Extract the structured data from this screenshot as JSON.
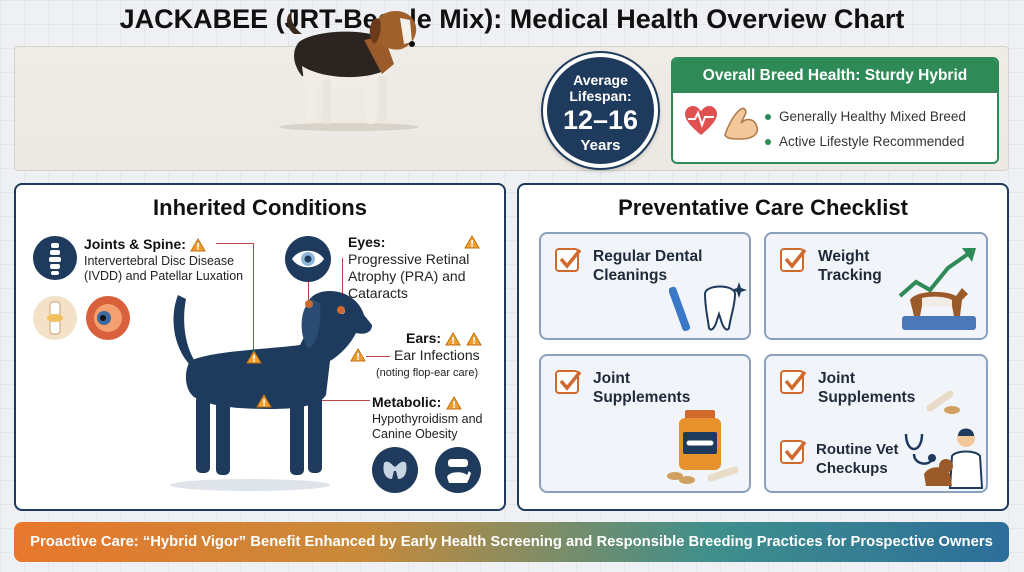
{
  "title": "JACKABEE (JRT-Beagle Mix): Medical Health Overview Chart",
  "lifespan": {
    "label": "Average Lifespan:",
    "value": "12–16",
    "unit": "Years"
  },
  "breed_health": {
    "header": "Overall Breed Health: Sturdy Hybrid",
    "items": [
      "Generally Healthy Mixed Breed",
      "Active Lifestyle Recommended"
    ]
  },
  "inherited": {
    "title": "Inherited Conditions",
    "joints": {
      "title": "Joints & Spine:",
      "text1": "Intervertebral Disc Disease",
      "text2": "(IVDD) and Patellar Luxation"
    },
    "eyes": {
      "title": "Eyes:",
      "text1": "Progressive Retinal",
      "text2": "Atrophy (PRA) and",
      "text3": "Cataracts"
    },
    "ears": {
      "title": "Ears:",
      "text1": "Ear Infections",
      "text2": "(noting flop-ear care)"
    },
    "metabolic": {
      "title": "Metabolic:",
      "text1": "Hypothyroidism and",
      "text2": "Canine Obesity"
    }
  },
  "care": {
    "title": "Preventative Care Checklist",
    "cards": [
      {
        "line1": "Regular Dental",
        "line2": "Cleanings"
      },
      {
        "line1": "Weight",
        "line2": "Tracking"
      },
      {
        "line1": "Joint",
        "line2": "Supplements"
      },
      {
        "line1": "Joint",
        "line2": "Supplements"
      }
    ],
    "vet": {
      "line1": "Routine Vet",
      "line2": "Checkups"
    }
  },
  "footer": "Proactive Care: “Hybrid Vigor” Benefit Enhanced by Early Health Screening and Responsible Breeding Practices for Prospective Owners",
  "colors": {
    "navy": "#1e3a5c",
    "green": "#2e8b57",
    "orange": "#d06a2c",
    "warning": "#f0a030"
  }
}
